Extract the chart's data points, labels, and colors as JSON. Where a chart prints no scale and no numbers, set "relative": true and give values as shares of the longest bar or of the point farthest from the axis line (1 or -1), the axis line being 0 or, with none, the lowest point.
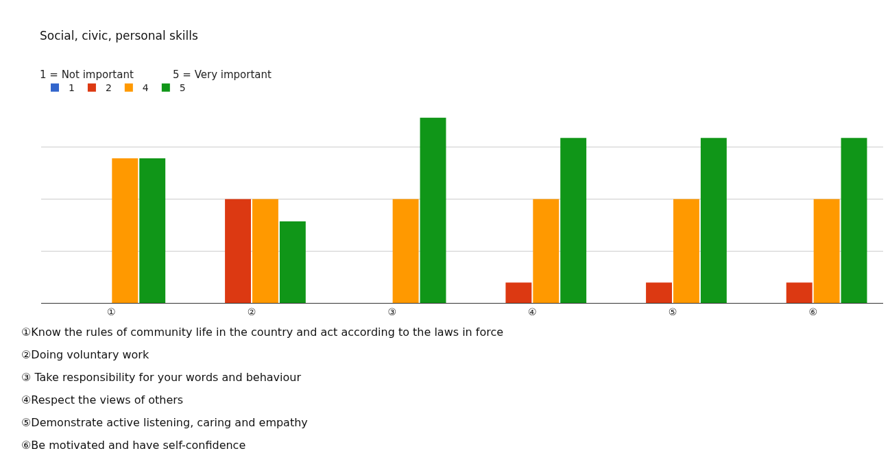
{
  "chart_data": {
    "type": "bar",
    "title": "Social, civic, personal skills",
    "subtitle": "1 = Not important            5 = Very important",
    "categories": [
      "①",
      "②",
      "③",
      "④",
      "⑤",
      "⑥"
    ],
    "relative": true,
    "grid": "y",
    "legend": "top left",
    "series": [
      {
        "name": "1",
        "color": "#3366cc",
        "values": [
          0,
          0,
          0,
          0,
          0,
          0
        ]
      },
      {
        "name": "2",
        "color": "#dc3912",
        "values": [
          0,
          0.56,
          0,
          0.11,
          0.11,
          0.11
        ]
      },
      {
        "name": "4",
        "color": "#ff9900",
        "values": [
          0.78,
          0.56,
          0.56,
          0.56,
          0.56,
          0.56
        ]
      },
      {
        "name": "5",
        "color": "#109618",
        "values": [
          0.78,
          0.44,
          1,
          0.89,
          0.89,
          0.89
        ]
      }
    ],
    "annotations": [
      "①Know the rules of community life in the country and act according to the laws in force",
      "②Doing voluntary work",
      "③ Take responsibility for your words and behaviour",
      "④Respect the views of others",
      "⑤Demonstrate active listening, caring and empathy",
      "⑥Be motivated and have self-confidence"
    ]
  }
}
